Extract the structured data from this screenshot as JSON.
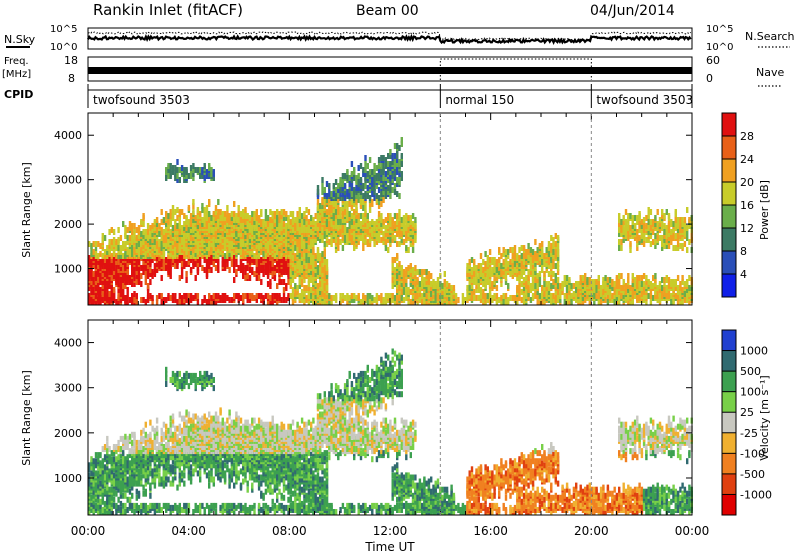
{
  "header": {
    "station": "Rankin Inlet (fitACF)",
    "beam": "Beam 00",
    "date": "04/Jun/2014"
  },
  "strips": {
    "nsky_label": "N.Sky",
    "nsky_ticks": [
      "10^5",
      "10^0"
    ],
    "nsearch_label": "N.Search",
    "nsearch_ticks": [
      "10^5",
      "10^0"
    ],
    "freq_label": "Freq.",
    "freq_unit": "[MHz]",
    "freq_ticks": [
      "18",
      "8"
    ],
    "nave_label": "Nave",
    "nave_ticks": [
      "60",
      "0"
    ],
    "cpid_label": "CPID",
    "cpid_segments": [
      {
        "name": "twofsound 3503",
        "start": 0,
        "end": 14
      },
      {
        "name": "normal 150",
        "start": 14,
        "end": 20
      },
      {
        "name": "twofsound 3503",
        "start": 20,
        "end": 24
      }
    ]
  },
  "chart_data": [
    {
      "type": "heatmap",
      "panel": "power",
      "ylabel": "Slant Range [km]",
      "xlabel": "Time UT",
      "x_range": [
        0,
        24
      ],
      "x_ticks": [
        "00:00",
        "04:00",
        "08:00",
        "12:00",
        "16:00",
        "20:00",
        "00:00"
      ],
      "y_range": [
        180,
        4500
      ],
      "y_ticks": [
        1000,
        2000,
        3000,
        4000
      ],
      "colorbar": {
        "label": "Power [dB]",
        "ticks": [
          "4",
          "8",
          "12",
          "16",
          "20",
          "24",
          "28"
        ],
        "colors": [
          "#1020e8",
          "#2a4fb8",
          "#3c7a64",
          "#6aae4a",
          "#c8cc2a",
          "#f0a020",
          "#e86018",
          "#e01010"
        ]
      }
    },
    {
      "type": "heatmap",
      "panel": "velocity",
      "ylabel": "Slant Range [km]",
      "xlabel": "Time UT",
      "x_range": [
        0,
        24
      ],
      "x_ticks": [
        "00:00",
        "04:00",
        "08:00",
        "12:00",
        "16:00",
        "20:00",
        "00:00"
      ],
      "y_range": [
        180,
        4500
      ],
      "y_ticks": [
        1000,
        2000,
        3000,
        4000
      ],
      "colorbar": {
        "label": "Velocity [m s⁻¹]",
        "ticks": [
          "1000",
          "500",
          "100",
          "25",
          "-25",
          "-100",
          "-500",
          "-1000"
        ],
        "colors": [
          "#2040d0",
          "#306a70",
          "#3ca050",
          "#78d048",
          "#c8c8c0",
          "#f0b030",
          "#f08020",
          "#e04010",
          "#e00000"
        ]
      }
    }
  ]
}
